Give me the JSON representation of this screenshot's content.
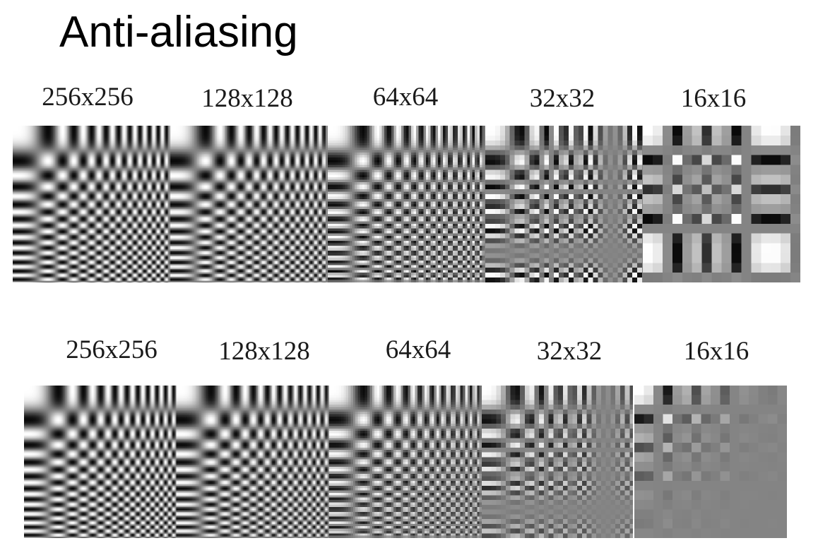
{
  "slide": {
    "title": "Anti-aliasing"
  },
  "rows": [
    {
      "id": "aliased",
      "labels": [
        "256x256",
        "128x128",
        "64x64",
        "32x32",
        "16x16"
      ],
      "sizes": [
        256,
        128,
        64,
        32,
        16
      ],
      "antialiased": false
    },
    {
      "id": "antialiased",
      "labels": [
        "256x256",
        "128x128",
        "64x64",
        "32x32",
        "16x16"
      ],
      "sizes": [
        256,
        128,
        64,
        32,
        16
      ],
      "antialiased": true
    }
  ],
  "colors": {
    "background": "#ffffff",
    "strip_gray": "#848484",
    "text": "#1a1a1a"
  }
}
